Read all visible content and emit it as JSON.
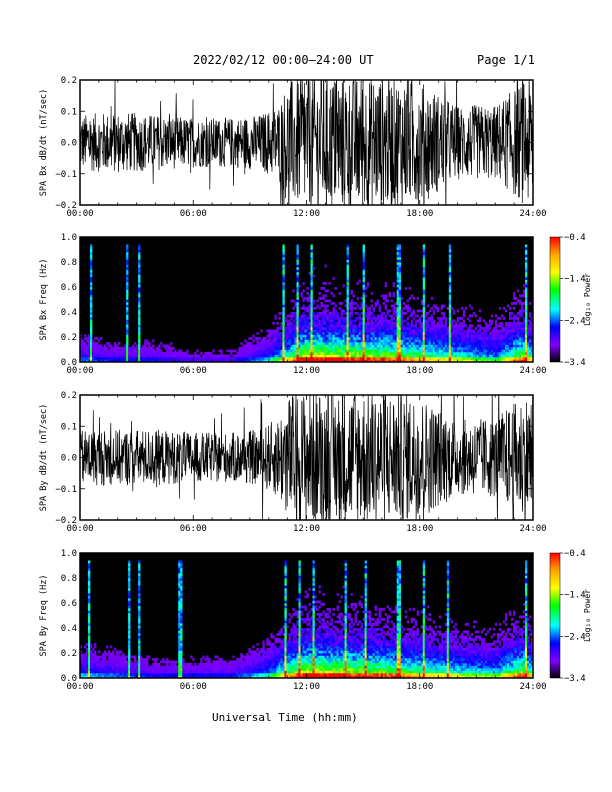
{
  "header": {
    "title": "2022/02/12  00:00–24:00 UT",
    "page": "Page 1/1"
  },
  "footer": {
    "xlabel": "Universal Time (hh:mm)"
  },
  "colors": {
    "trace": "#000000",
    "spectrogram_background": "#000000",
    "colorbar_stops": [
      "#ff0000",
      "#ffa500",
      "#ffff00",
      "#00ff00",
      "#00ffff",
      "#0000ff",
      "#8000ff",
      "#000000"
    ]
  },
  "chart_data": [
    {
      "type": "line",
      "ylabel": "SPA Bx dB/dt (nT/sec)",
      "x_ticklabels": [
        "00:00",
        "06:00",
        "12:00",
        "18:00",
        "24:00"
      ],
      "xlim": [
        0,
        24
      ],
      "ylim": [
        -0.2,
        0.2
      ],
      "y_ticklabels": [
        "0.2",
        "0.1",
        "0.0",
        "−0.1",
        "−0.2"
      ],
      "y_ticks": [
        0.2,
        0.1,
        0.0,
        -0.1,
        -0.2
      ],
      "envelope": {
        "hours": [
          0,
          2,
          4,
          6,
          8,
          9.5,
          10.5,
          11,
          12,
          14,
          16,
          18,
          20,
          22,
          23.5,
          24
        ],
        "half_width": [
          0.09,
          0.1,
          0.09,
          0.08,
          0.08,
          0.09,
          0.12,
          0.2,
          0.22,
          0.22,
          0.22,
          0.2,
          0.12,
          0.12,
          0.2,
          0.22
        ]
      }
    },
    {
      "type": "heatmap",
      "ylabel": "SPA Bx Freq (Hz)",
      "x_ticklabels": [
        "00:00",
        "06:00",
        "12:00",
        "18:00",
        "24:00"
      ],
      "xlim": [
        0,
        24
      ],
      "ylim": [
        0,
        1.0
      ],
      "y_ticklabels": [
        "1.0",
        "0.8",
        "0.6",
        "0.4",
        "0.2",
        "0.0"
      ],
      "y_ticks": [
        1.0,
        0.8,
        0.6,
        0.4,
        0.2,
        0.0
      ],
      "colorbar": {
        "label": "Log₁₀ Power",
        "range": [
          -3.4,
          -0.4
        ],
        "ticklabels": [
          "−0.4",
          "−1.4",
          "−2.4",
          "−3.4"
        ],
        "ticks": [
          -0.4,
          -1.4,
          -2.4,
          -3.4
        ]
      },
      "activity": {
        "hours": [
          0,
          2,
          4,
          6,
          8,
          10,
          11,
          12,
          14,
          16,
          18,
          20,
          22,
          23.5,
          24
        ],
        "level": [
          0.25,
          0.2,
          0.2,
          0.15,
          0.15,
          0.3,
          0.55,
          0.8,
          0.75,
          0.7,
          0.6,
          0.5,
          0.4,
          0.7,
          0.5
        ]
      },
      "vertical_streak_hours": [
        0.6,
        2.5,
        3.1,
        10.8,
        11.5,
        12.3,
        14.2,
        15.0,
        16.9,
        18.2,
        19.6,
        23.6
      ]
    },
    {
      "type": "line",
      "ylabel": "SPA By dB/dt (nT/sec)",
      "x_ticklabels": [
        "00:00",
        "06:00",
        "12:00",
        "18:00",
        "24:00"
      ],
      "xlim": [
        0,
        24
      ],
      "ylim": [
        -0.2,
        0.2
      ],
      "y_ticklabels": [
        "0.2",
        "0.1",
        "0.0",
        "−0.1",
        "−0.2"
      ],
      "y_ticks": [
        0.2,
        0.1,
        0.0,
        -0.1,
        -0.2
      ],
      "envelope": {
        "hours": [
          0,
          2,
          4,
          6,
          8,
          9.5,
          10.5,
          11,
          12,
          14,
          16,
          18,
          20,
          22,
          23.5,
          24
        ],
        "half_width": [
          0.09,
          0.09,
          0.09,
          0.08,
          0.08,
          0.09,
          0.13,
          0.2,
          0.22,
          0.22,
          0.22,
          0.2,
          0.12,
          0.13,
          0.2,
          0.22
        ]
      }
    },
    {
      "type": "heatmap",
      "ylabel": "SPA By Freq (Hz)",
      "x_ticklabels": [
        "00:00",
        "06:00",
        "12:00",
        "18:00",
        "24:00"
      ],
      "xlim": [
        0,
        24
      ],
      "ylim": [
        0,
        1.0
      ],
      "y_ticklabels": [
        "1.0",
        "0.8",
        "0.6",
        "0.4",
        "0.2",
        "0.0"
      ],
      "y_ticks": [
        1.0,
        0.8,
        0.6,
        0.4,
        0.2,
        0.0
      ],
      "colorbar": {
        "label": "Log₁₀ Power",
        "range": [
          -3.4,
          -0.4
        ],
        "ticklabels": [
          "−0.4",
          "−1.4",
          "−2.4",
          "−3.4"
        ],
        "ticks": [
          -0.4,
          -1.4,
          -2.4,
          -3.4
        ]
      },
      "activity": {
        "hours": [
          0,
          2,
          4,
          6,
          8,
          10,
          11,
          12,
          14,
          16,
          18,
          20,
          22,
          23.5,
          24
        ],
        "level": [
          0.3,
          0.25,
          0.2,
          0.2,
          0.2,
          0.35,
          0.6,
          0.8,
          0.75,
          0.7,
          0.6,
          0.5,
          0.45,
          0.7,
          0.5
        ]
      },
      "vertical_streak_hours": [
        0.5,
        2.6,
        3.1,
        5.3,
        10.9,
        11.6,
        12.4,
        14.1,
        15.1,
        16.9,
        18.2,
        19.5,
        23.6
      ]
    }
  ]
}
